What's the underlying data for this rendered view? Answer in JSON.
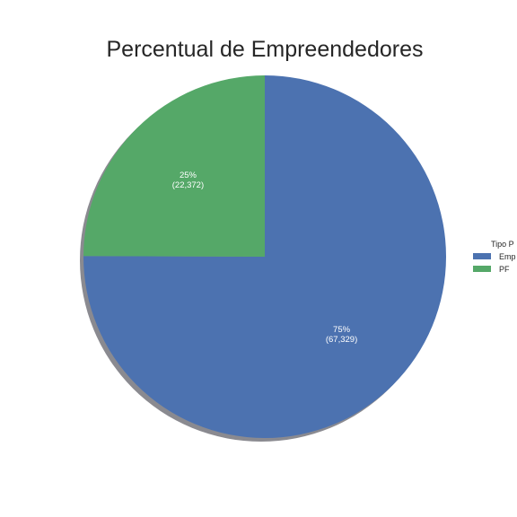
{
  "chart_data": {
    "type": "pie",
    "title": "Percentual de Empreendedores",
    "categories": [
      "Emp",
      "PF"
    ],
    "values": [
      67329,
      22372
    ],
    "slices": [
      {
        "label": "Emp",
        "value": 67329,
        "percent_label": "75%",
        "value_label": "(67,329)",
        "color": "#4c72b0"
      },
      {
        "label": "PF",
        "value": 22372,
        "percent_label": "25%",
        "value_label": "(22,372)",
        "color": "#55a868"
      }
    ],
    "legend": {
      "title": "Tipo P",
      "placement": "right",
      "entries": [
        "Emp",
        "PF"
      ]
    },
    "shadow": true,
    "start_angle_deg": 90,
    "direction": "clockwise"
  },
  "colors": {
    "emp": "#4c72b0",
    "pf": "#55a868",
    "shadow": "#8a8a90",
    "background": "#ffffff"
  }
}
